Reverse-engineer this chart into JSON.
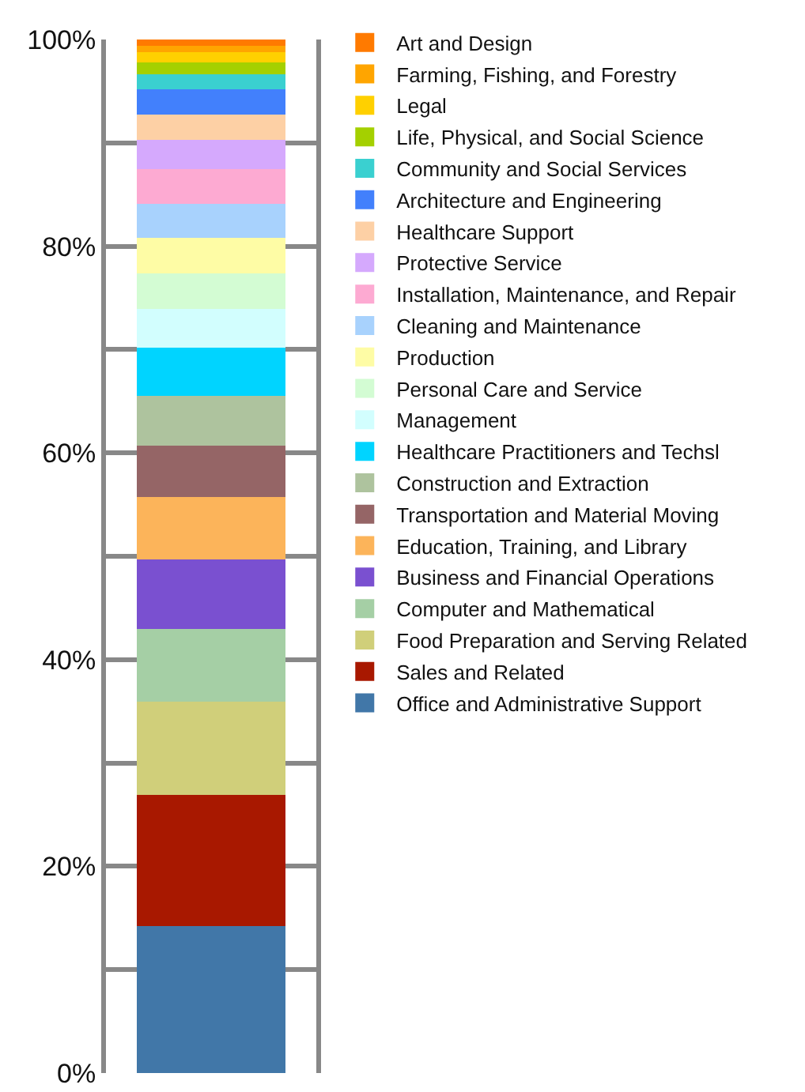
{
  "chart_data": {
    "type": "bar",
    "stacked": true,
    "categories": [
      null
    ],
    "ylim": [
      0,
      100
    ],
    "yticks": [
      {
        "value": 0,
        "label": "0%"
      },
      {
        "value": 10,
        "label": null
      },
      {
        "value": 20,
        "label": "20%"
      },
      {
        "value": 30,
        "label": null
      },
      {
        "value": 40,
        "label": "40%"
      },
      {
        "value": 50,
        "label": null
      },
      {
        "value": 60,
        "label": "60%"
      },
      {
        "value": 70,
        "label": null
      },
      {
        "value": 80,
        "label": "80%"
      },
      {
        "value": 90,
        "label": null
      },
      {
        "value": 100,
        "label": "100%"
      }
    ],
    "grid": "y",
    "legend": "right",
    "series": [
      {
        "name": "Office and Administrative Support",
        "color": "#4177a8",
        "values": [
          14.2
        ]
      },
      {
        "name": "Sales and Related",
        "color": "#a81800",
        "values": [
          12.7
        ]
      },
      {
        "name": "Food Preparation and Serving Related",
        "color": "#d0cf7a",
        "values": [
          9.0
        ]
      },
      {
        "name": "Computer and Mathematical",
        "color": "#a5cfa5",
        "values": [
          7.1
        ]
      },
      {
        "name": "Business and Financial Operations",
        "color": "#7a50d0",
        "values": [
          6.7
        ]
      },
      {
        "name": "Education, Training, and Library",
        "color": "#fcb45a",
        "values": [
          6.0
        ]
      },
      {
        "name": "Transportation and Material Moving",
        "color": "#956566",
        "values": [
          5.0
        ]
      },
      {
        "name": "Construction and Extraction",
        "color": "#aec39e",
        "values": [
          4.8
        ]
      },
      {
        "name": "Healthcare Practitioners and Techsl",
        "color": "#00d4ff",
        "values": [
          4.7
        ]
      },
      {
        "name": "Management",
        "color": "#d2fefe",
        "values": [
          3.7
        ]
      },
      {
        "name": "Personal Care and Service",
        "color": "#d3fcd3",
        "values": [
          3.5
        ]
      },
      {
        "name": "Production",
        "color": "#fefca5",
        "values": [
          3.4
        ]
      },
      {
        "name": "Cleaning and Maintenance",
        "color": "#a8d2fd",
        "values": [
          3.3
        ]
      },
      {
        "name": "Installation, Maintenance, and Repair",
        "color": "#fdaad2",
        "values": [
          3.4
        ]
      },
      {
        "name": "Protective Service",
        "color": "#d5a9fd",
        "values": [
          2.8
        ]
      },
      {
        "name": "Healthcare Support",
        "color": "#fdd0a5",
        "values": [
          2.4
        ]
      },
      {
        "name": "Architecture and Engineering",
        "color": "#4280fc",
        "values": [
          2.5
        ]
      },
      {
        "name": "Community and Social Services",
        "color": "#3ad0d0",
        "values": [
          1.4
        ]
      },
      {
        "name": "Life, Physical, and Social Science",
        "color": "#a4d000",
        "values": [
          1.2
        ]
      },
      {
        "name": "Legal",
        "color": "#ffd000",
        "values": [
          1.0
        ]
      },
      {
        "name": "Farming, Fishing, and Forestry",
        "color": "#ffa500",
        "values": [
          0.6
        ]
      },
      {
        "name": "Art and Design",
        "color": "#ff7a00",
        "values": [
          0.6
        ]
      }
    ]
  }
}
